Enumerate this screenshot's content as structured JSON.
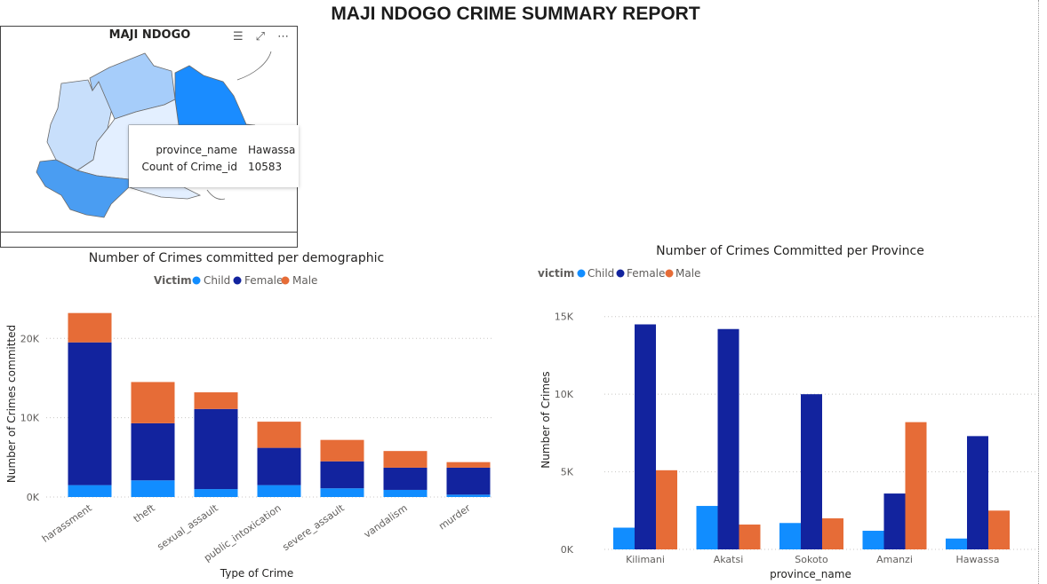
{
  "report": {
    "title": "MAJI NDOGO CRIME SUMMARY REPORT"
  },
  "map": {
    "title": "MAJI NDOGO",
    "icons": [
      "filter-icon",
      "focus-mode-icon",
      "more-options-icon"
    ],
    "region_colors": [
      "#a6cdfa",
      "#1a8cff",
      "#e3efff",
      "#4a9df2",
      "#c8dffb"
    ],
    "tooltip": {
      "rows": [
        {
          "key": "province_name",
          "value": "Hawassa"
        },
        {
          "key": "Count of Crime_id",
          "value": "10583"
        }
      ]
    }
  },
  "colors": {
    "child": "#118dff",
    "female": "#12239e",
    "male": "#e66c37"
  },
  "chart_data": [
    {
      "type": "bar",
      "stacked": true,
      "title": "Number of Crimes committed per demographic",
      "legend_title": "Victim",
      "legend_position": "top-center",
      "xlabel": "Type of Crime",
      "ylabel": "Number of Crimes committed",
      "categories": [
        "harassment",
        "theft",
        "sexual_assault",
        "public_intoxication",
        "severe_assault",
        "vandalism",
        "murder"
      ],
      "series": [
        {
          "name": "Child",
          "values": [
            1500,
            2100,
            1000,
            1500,
            1100,
            900,
            300
          ]
        },
        {
          "name": "Female",
          "values": [
            18000,
            7200,
            10100,
            4700,
            3400,
            2800,
            3400
          ]
        },
        {
          "name": "Male",
          "values": [
            3700,
            5200,
            2100,
            3300,
            2700,
            2100,
            700
          ]
        }
      ],
      "ylim": [
        0,
        23500
      ],
      "yticks": [
        0,
        10000,
        20000
      ],
      "ytick_labels": [
        "0K",
        "10K",
        "20K"
      ],
      "grid": true
    },
    {
      "type": "bar",
      "stacked": false,
      "title": "Number of Crimes Committed per Province",
      "legend_title": "victim",
      "legend_position": "top-left",
      "xlabel": "province_name",
      "ylabel": "Number of Crimes",
      "categories": [
        "Kilimani",
        "Akatsi",
        "Sokoto",
        "Amanzi",
        "Hawassa"
      ],
      "series": [
        {
          "name": "Child",
          "values": [
            1400,
            2800,
            1700,
            1200,
            700
          ]
        },
        {
          "name": "Female",
          "values": [
            14500,
            14200,
            10000,
            3600,
            7300
          ]
        },
        {
          "name": "Male",
          "values": [
            5100,
            1600,
            2000,
            8200,
            2500
          ]
        }
      ],
      "ylim": [
        0,
        15500
      ],
      "yticks": [
        0,
        5000,
        10000,
        15000
      ],
      "ytick_labels": [
        "0K",
        "5K",
        "10K",
        "15K"
      ],
      "grid": true
    }
  ]
}
